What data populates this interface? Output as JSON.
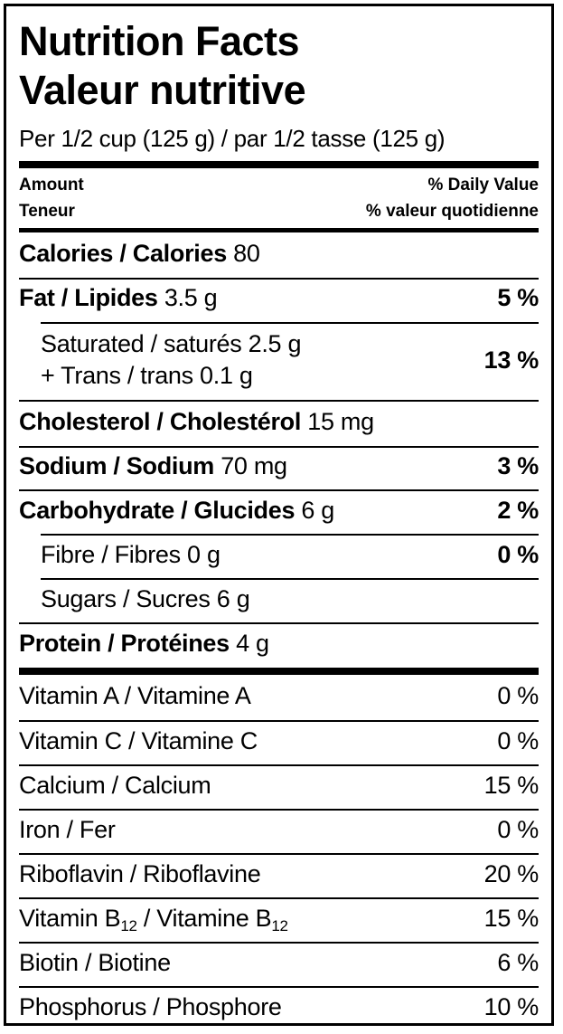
{
  "title_en": "Nutrition Facts",
  "title_fr": "Valeur nutritive",
  "serving": "Per 1/2 cup (125 g) / par 1/2 tasse (125 g)",
  "header": {
    "amount_en": "Amount",
    "amount_fr": "Teneur",
    "dv_en": "% Daily Value",
    "dv_fr": "% valeur quotidienne"
  },
  "nutrients": {
    "calories": {
      "label": "Calories / Calories",
      "amount": "80"
    },
    "fat": {
      "label": "Fat / Lipides",
      "amount": "3.5 g",
      "dv": "5 %"
    },
    "saturated": {
      "label": "Saturated / saturés",
      "amount": "2.5 g"
    },
    "trans": {
      "label": "+ Trans / trans",
      "amount": "0.1 g"
    },
    "sat_trans_dv": "13 %",
    "cholesterol": {
      "label": "Cholesterol / Cholestérol",
      "amount": "15 mg"
    },
    "sodium": {
      "label": "Sodium / Sodium",
      "amount": "70 mg",
      "dv": "3 %"
    },
    "carbohydrate": {
      "label": "Carbohydrate / Glucides",
      "amount": "6 g",
      "dv": "2 %"
    },
    "fibre": {
      "label": "Fibre / Fibres",
      "amount": "0 g",
      "dv": "0 %"
    },
    "sugars": {
      "label": "Sugars / Sucres",
      "amount": "6 g"
    },
    "protein": {
      "label": "Protein / Protéines",
      "amount": "4 g"
    }
  },
  "vitamins": {
    "vitamin_a": {
      "label": "Vitamin A / Vitamine A",
      "dv": "0 %"
    },
    "vitamin_c": {
      "label": "Vitamin C / Vitamine C",
      "dv": "0 %"
    },
    "calcium": {
      "label": "Calcium / Calcium",
      "dv": "15 %"
    },
    "iron": {
      "label": "Iron / Fer",
      "dv": "0 %"
    },
    "riboflavin": {
      "label": "Riboflavin / Riboflavine",
      "dv": "20 %"
    },
    "vitamin_b12": {
      "en": "Vitamin B",
      "fr": " / Vitamine B",
      "sub": "12",
      "dv": "15 %"
    },
    "biotin": {
      "label": "Biotin / Biotine",
      "dv": "6 %"
    },
    "phosphorus": {
      "label": "Phosphorus / Phosphore",
      "dv": "10 %"
    }
  }
}
